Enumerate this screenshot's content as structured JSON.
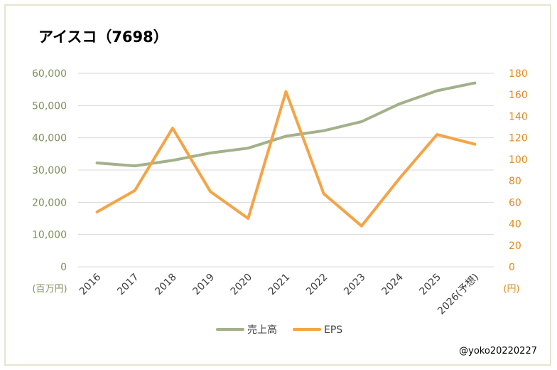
{
  "title": "アイスコ（7698）",
  "credit": "@yoko20220227",
  "colors": {
    "sales": "#a3b18a",
    "eps": "#f4a446",
    "grid": "#d9d9d9",
    "left_axis_text": "#7f8f5a",
    "right_axis_text": "#e08a1e"
  },
  "chart_data": {
    "type": "line",
    "categories": [
      "2016",
      "2017",
      "2018",
      "2019",
      "2020",
      "2021",
      "2022",
      "2023",
      "2024",
      "2025",
      "2026(予想)"
    ],
    "series": [
      {
        "name": "売上高",
        "axis": "left",
        "values": [
          32200,
          31300,
          33000,
          35300,
          36800,
          40500,
          42200,
          45000,
          50500,
          54600,
          57000
        ]
      },
      {
        "name": "EPS",
        "axis": "right",
        "values": [
          51,
          71,
          129,
          70,
          45,
          163,
          68,
          38,
          82,
          123,
          114
        ]
      }
    ],
    "y_left": {
      "min": 0,
      "max": 60000,
      "ticks": [
        "0",
        "10,000",
        "20,000",
        "30,000",
        "40,000",
        "50,000",
        "60,000"
      ],
      "unit": "(百万円)"
    },
    "y_right": {
      "min": 0,
      "max": 180,
      "ticks": [
        "0",
        "20",
        "40",
        "60",
        "80",
        "100",
        "120",
        "140",
        "160",
        "180"
      ],
      "unit": "(円)"
    },
    "grid": true,
    "legend": "bottom"
  }
}
